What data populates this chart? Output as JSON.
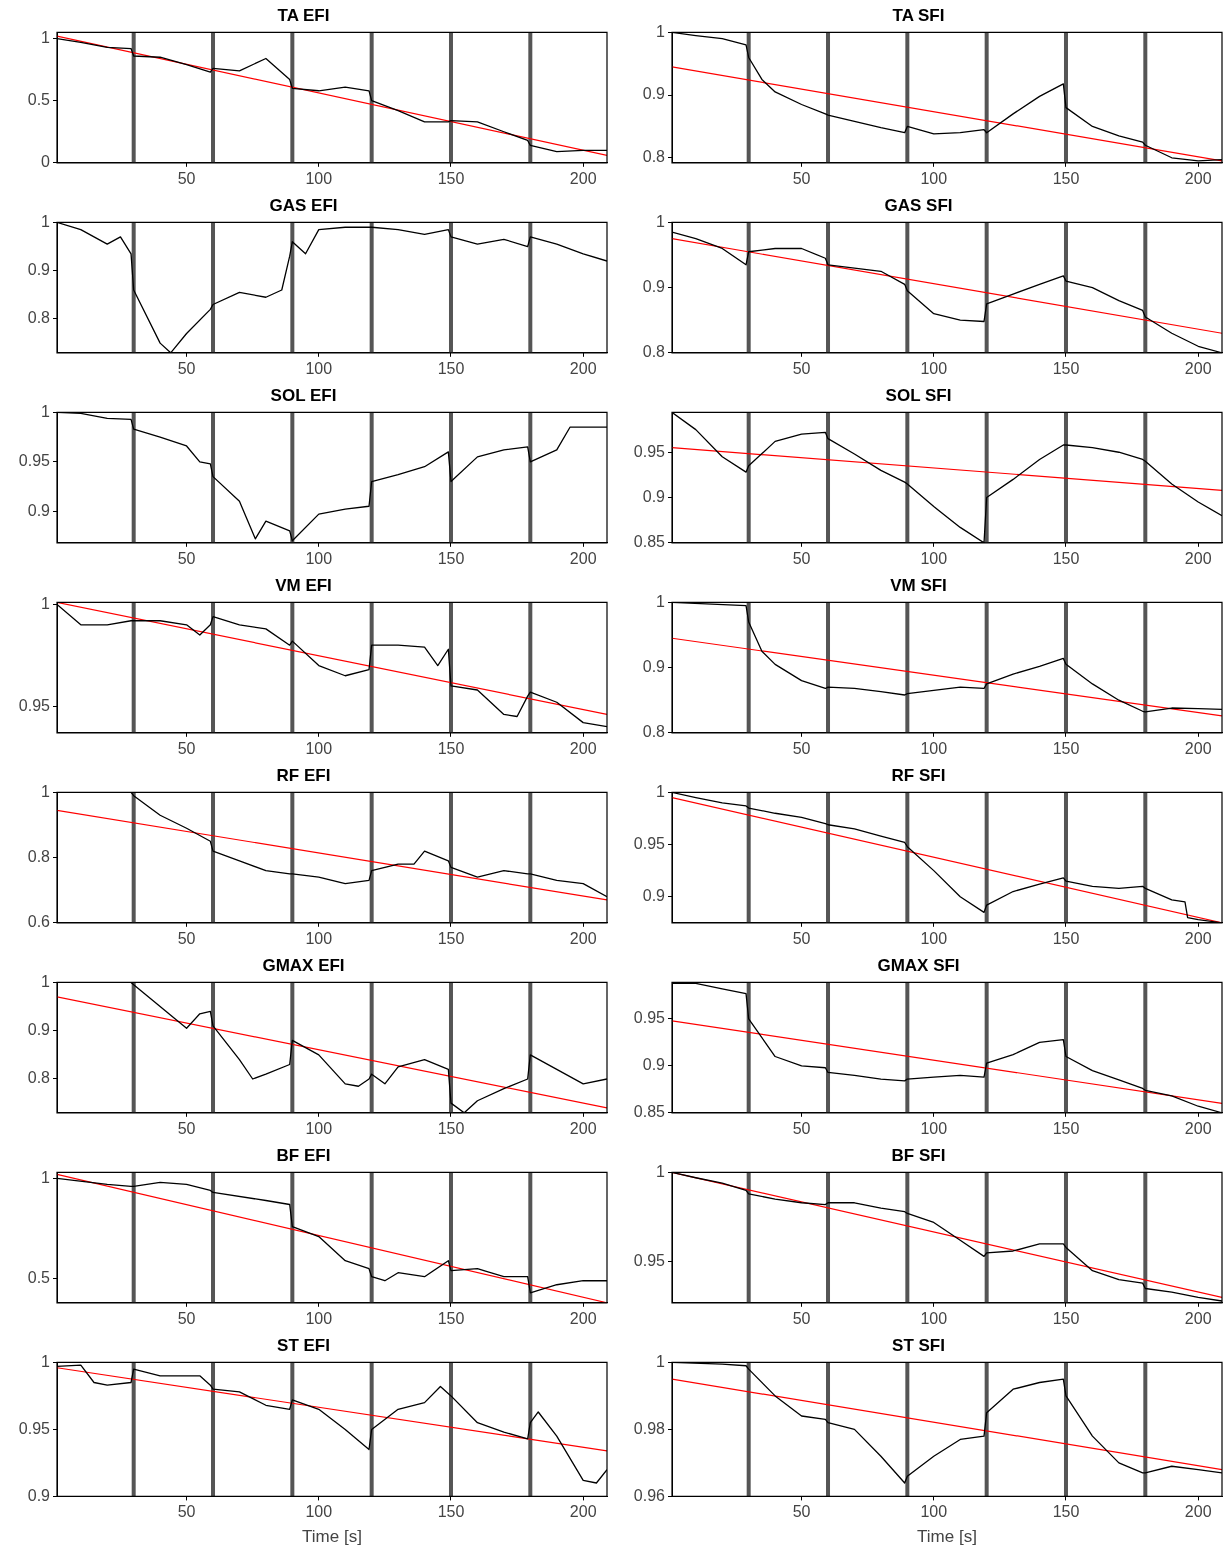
{
  "chart_data": [
    {
      "type": "line",
      "title": "TA EFI",
      "xlim": [
        1,
        209
      ],
      "xticks": [
        50,
        100,
        150,
        200
      ],
      "ylim": [
        0,
        1.05
      ],
      "yticks": [
        0,
        0.5,
        1
      ],
      "marker": "none",
      "ref_lines": [
        {
          "axis": "x",
          "value": 30,
          "color": "#555555"
        },
        {
          "axis": "x",
          "value": 60,
          "color": "#555555"
        },
        {
          "axis": "x",
          "value": 90,
          "color": "#555555"
        },
        {
          "axis": "x",
          "value": 120,
          "color": "#555555"
        },
        {
          "axis": "x",
          "value": 150,
          "color": "#555555"
        },
        {
          "axis": "x",
          "value": 180,
          "color": "#555555"
        }
      ],
      "series": [
        {
          "color": "#000000",
          "x": [
            1,
            10,
            20,
            29,
            30,
            40,
            50,
            59,
            60,
            70,
            80,
            89,
            90,
            100,
            110,
            119,
            120,
            130,
            140,
            149,
            150,
            160,
            170,
            179,
            180,
            190,
            200,
            209
          ],
          "values": [
            1.0,
            0.97,
            0.93,
            0.92,
            0.86,
            0.85,
            0.79,
            0.73,
            0.76,
            0.74,
            0.84,
            0.67,
            0.6,
            0.58,
            0.61,
            0.58,
            0.5,
            0.42,
            0.33,
            0.33,
            0.34,
            0.33,
            0.25,
            0.18,
            0.14,
            0.09,
            0.1,
            0.1
          ]
        },
        {
          "color": "#ff0000",
          "x": [
            1,
            209
          ],
          "values": [
            1.02,
            0.06
          ]
        }
      ]
    },
    {
      "type": "line",
      "title": "TA SFI",
      "xlim": [
        1,
        209
      ],
      "xticks": [
        50,
        100,
        150,
        200
      ],
      "ylim": [
        0.792,
        1.0
      ],
      "yticks": [
        0.8,
        0.9,
        1
      ],
      "marker": "none",
      "ref_lines": [
        {
          "axis": "x",
          "value": 30,
          "color": "#555555"
        },
        {
          "axis": "x",
          "value": 60,
          "color": "#555555"
        },
        {
          "axis": "x",
          "value": 90,
          "color": "#555555"
        },
        {
          "axis": "x",
          "value": 120,
          "color": "#555555"
        },
        {
          "axis": "x",
          "value": 150,
          "color": "#555555"
        },
        {
          "axis": "x",
          "value": 180,
          "color": "#555555"
        }
      ],
      "series": [
        {
          "color": "#000000",
          "x": [
            1,
            10,
            20,
            29,
            30,
            35,
            40,
            50,
            59,
            60,
            70,
            80,
            89,
            90,
            100,
            110,
            119,
            120,
            130,
            140,
            149,
            150,
            160,
            170,
            179,
            180,
            190,
            200,
            209
          ],
          "values": [
            1.0,
            0.995,
            0.99,
            0.98,
            0.96,
            0.925,
            0.905,
            0.885,
            0.87,
            0.868,
            0.858,
            0.848,
            0.84,
            0.85,
            0.838,
            0.84,
            0.845,
            0.84,
            0.87,
            0.898,
            0.918,
            0.88,
            0.85,
            0.835,
            0.825,
            0.82,
            0.8,
            0.795,
            0.797
          ]
        },
        {
          "color": "#ff0000",
          "x": [
            1,
            209
          ],
          "values": [
            0.945,
            0.795
          ]
        }
      ]
    },
    {
      "type": "line",
      "title": "GAS EFI",
      "xlim": [
        1,
        209
      ],
      "xticks": [
        50,
        100,
        150,
        200
      ],
      "ylim": [
        0.73,
        1.0
      ],
      "yticks": [
        0.8,
        0.9,
        1
      ],
      "marker": "none",
      "ref_lines": [
        {
          "axis": "x",
          "value": 30,
          "color": "#555555"
        },
        {
          "axis": "x",
          "value": 60,
          "color": "#555555"
        },
        {
          "axis": "x",
          "value": 90,
          "color": "#555555"
        },
        {
          "axis": "x",
          "value": 120,
          "color": "#555555"
        },
        {
          "axis": "x",
          "value": 150,
          "color": "#555555"
        },
        {
          "axis": "x",
          "value": 180,
          "color": "#555555"
        }
      ],
      "series": [
        {
          "color": "#000000",
          "x": [
            1,
            10,
            20,
            25,
            29,
            30,
            40,
            44,
            50,
            59,
            60,
            70,
            80,
            86,
            89,
            90,
            95,
            100,
            110,
            119,
            120,
            130,
            140,
            149,
            150,
            160,
            170,
            179,
            180,
            190,
            200,
            209
          ],
          "values": [
            1.0,
            0.985,
            0.955,
            0.97,
            0.935,
            0.86,
            0.75,
            0.73,
            0.77,
            0.82,
            0.83,
            0.855,
            0.845,
            0.86,
            0.93,
            0.96,
            0.935,
            0.985,
            0.99,
            0.99,
            0.99,
            0.985,
            0.975,
            0.985,
            0.97,
            0.955,
            0.965,
            0.95,
            0.97,
            0.955,
            0.935,
            0.92
          ]
        }
      ]
    },
    {
      "type": "line",
      "title": "GAS SFI",
      "xlim": [
        1,
        209
      ],
      "xticks": [
        50,
        100,
        150,
        200
      ],
      "ylim": [
        0.8,
        1.0
      ],
      "yticks": [
        0.8,
        0.9,
        1
      ],
      "marker": "none",
      "ref_lines": [
        {
          "axis": "x",
          "value": 30,
          "color": "#555555"
        },
        {
          "axis": "x",
          "value": 60,
          "color": "#555555"
        },
        {
          "axis": "x",
          "value": 90,
          "color": "#555555"
        },
        {
          "axis": "x",
          "value": 120,
          "color": "#555555"
        },
        {
          "axis": "x",
          "value": 150,
          "color": "#555555"
        },
        {
          "axis": "x",
          "value": 180,
          "color": "#555555"
        }
      ],
      "series": [
        {
          "color": "#000000",
          "x": [
            1,
            10,
            20,
            29,
            30,
            40,
            50,
            59,
            60,
            70,
            80,
            89,
            90,
            100,
            110,
            119,
            120,
            130,
            140,
            149,
            150,
            160,
            170,
            179,
            180,
            190,
            200,
            209
          ],
          "values": [
            0.985,
            0.975,
            0.96,
            0.935,
            0.955,
            0.96,
            0.96,
            0.945,
            0.935,
            0.93,
            0.925,
            0.905,
            0.895,
            0.86,
            0.85,
            0.848,
            0.875,
            0.89,
            0.905,
            0.918,
            0.91,
            0.9,
            0.88,
            0.865,
            0.855,
            0.83,
            0.81,
            0.8
          ]
        },
        {
          "color": "#ff0000",
          "x": [
            1,
            209
          ],
          "values": [
            0.975,
            0.83
          ]
        }
      ]
    },
    {
      "type": "line",
      "title": "SOL EFI",
      "xlim": [
        1,
        209
      ],
      "xticks": [
        50,
        100,
        150,
        200
      ],
      "ylim": [
        0.868,
        1.0
      ],
      "yticks": [
        0.9,
        0.95,
        1
      ],
      "marker": "none",
      "ref_lines": [
        {
          "axis": "x",
          "value": 30,
          "color": "#555555"
        },
        {
          "axis": "x",
          "value": 60,
          "color": "#555555"
        },
        {
          "axis": "x",
          "value": 90,
          "color": "#555555"
        },
        {
          "axis": "x",
          "value": 120,
          "color": "#555555"
        },
        {
          "axis": "x",
          "value": 150,
          "color": "#555555"
        },
        {
          "axis": "x",
          "value": 180,
          "color": "#555555"
        }
      ],
      "series": [
        {
          "color": "#000000",
          "x": [
            1,
            10,
            20,
            29,
            30,
            40,
            50,
            55,
            59,
            60,
            70,
            76,
            80,
            89,
            90,
            100,
            110,
            119,
            120,
            130,
            140,
            149,
            150,
            160,
            170,
            179,
            180,
            190,
            195,
            209
          ],
          "values": [
            1.0,
            0.999,
            0.994,
            0.993,
            0.983,
            0.975,
            0.966,
            0.95,
            0.948,
            0.935,
            0.91,
            0.872,
            0.89,
            0.88,
            0.87,
            0.897,
            0.902,
            0.905,
            0.93,
            0.937,
            0.945,
            0.96,
            0.93,
            0.955,
            0.962,
            0.965,
            0.95,
            0.962,
            0.985,
            0.985
          ]
        }
      ]
    },
    {
      "type": "line",
      "title": "SOL SFI",
      "xlim": [
        1,
        209
      ],
      "xticks": [
        50,
        100,
        150,
        200
      ],
      "ylim": [
        0.85,
        0.994
      ],
      "yticks": [
        0.85,
        0.9,
        0.95
      ],
      "marker": "none",
      "ref_lines": [
        {
          "axis": "x",
          "value": 30,
          "color": "#555555"
        },
        {
          "axis": "x",
          "value": 60,
          "color": "#555555"
        },
        {
          "axis": "x",
          "value": 90,
          "color": "#555555"
        },
        {
          "axis": "x",
          "value": 120,
          "color": "#555555"
        },
        {
          "axis": "x",
          "value": 150,
          "color": "#555555"
        },
        {
          "axis": "x",
          "value": 180,
          "color": "#555555"
        }
      ],
      "series": [
        {
          "color": "#000000",
          "x": [
            1,
            10,
            20,
            29,
            30,
            40,
            50,
            59,
            60,
            70,
            80,
            89,
            90,
            100,
            110,
            119,
            120,
            130,
            140,
            149,
            150,
            160,
            170,
            179,
            180,
            190,
            200,
            209
          ],
          "values": [
            0.994,
            0.975,
            0.945,
            0.928,
            0.935,
            0.962,
            0.97,
            0.972,
            0.965,
            0.948,
            0.93,
            0.917,
            0.915,
            0.89,
            0.867,
            0.85,
            0.9,
            0.92,
            0.942,
            0.958,
            0.958,
            0.955,
            0.95,
            0.942,
            0.94,
            0.915,
            0.895,
            0.88
          ]
        },
        {
          "color": "#ff0000",
          "x": [
            1,
            209
          ],
          "values": [
            0.955,
            0.908
          ]
        }
      ]
    },
    {
      "type": "line",
      "title": "VM EFI",
      "xlim": [
        1,
        209
      ],
      "xticks": [
        50,
        100,
        150,
        200
      ],
      "ylim": [
        0.937,
        1.001
      ],
      "yticks": [
        0.95,
        1
      ],
      "marker": "none",
      "ref_lines": [
        {
          "axis": "x",
          "value": 30,
          "color": "#555555"
        },
        {
          "axis": "x",
          "value": 60,
          "color": "#555555"
        },
        {
          "axis": "x",
          "value": 90,
          "color": "#555555"
        },
        {
          "axis": "x",
          "value": 120,
          "color": "#555555"
        },
        {
          "axis": "x",
          "value": 150,
          "color": "#555555"
        },
        {
          "axis": "x",
          "value": 180,
          "color": "#555555"
        }
      ],
      "series": [
        {
          "color": "#000000",
          "x": [
            1,
            10,
            20,
            29,
            30,
            40,
            50,
            55,
            59,
            60,
            70,
            80,
            89,
            90,
            100,
            110,
            119,
            120,
            130,
            140,
            145,
            149,
            150,
            160,
            170,
            175,
            179,
            180,
            190,
            200,
            209
          ],
          "values": [
            1.0,
            0.99,
            0.99,
            0.992,
            0.992,
            0.992,
            0.99,
            0.985,
            0.99,
            0.994,
            0.99,
            0.988,
            0.98,
            0.982,
            0.97,
            0.965,
            0.968,
            0.98,
            0.98,
            0.979,
            0.97,
            0.978,
            0.96,
            0.958,
            0.946,
            0.945,
            0.955,
            0.957,
            0.952,
            0.942,
            0.94
          ]
        },
        {
          "color": "#ff0000",
          "x": [
            1,
            209
          ],
          "values": [
            1.001,
            0.946
          ]
        }
      ]
    },
    {
      "type": "line",
      "title": "VM SFI",
      "xlim": [
        1,
        209
      ],
      "xticks": [
        50,
        100,
        150,
        200
      ],
      "ylim": [
        0.8,
        1.0
      ],
      "yticks": [
        0.8,
        0.9,
        1
      ],
      "marker": "none",
      "ref_lines": [
        {
          "axis": "x",
          "value": 30,
          "color": "#555555"
        },
        {
          "axis": "x",
          "value": 60,
          "color": "#555555"
        },
        {
          "axis": "x",
          "value": 90,
          "color": "#555555"
        },
        {
          "axis": "x",
          "value": 120,
          "color": "#555555"
        },
        {
          "axis": "x",
          "value": 150,
          "color": "#555555"
        },
        {
          "axis": "x",
          "value": 180,
          "color": "#555555"
        }
      ],
      "series": [
        {
          "color": "#000000",
          "x": [
            1,
            29,
            30,
            35,
            40,
            50,
            59,
            60,
            70,
            80,
            89,
            90,
            100,
            110,
            119,
            120,
            130,
            140,
            149,
            150,
            160,
            170,
            179,
            180,
            190,
            200,
            209
          ],
          "values": [
            1.0,
            0.995,
            0.97,
            0.925,
            0.905,
            0.88,
            0.868,
            0.87,
            0.868,
            0.863,
            0.858,
            0.86,
            0.865,
            0.87,
            0.868,
            0.875,
            0.89,
            0.902,
            0.914,
            0.905,
            0.875,
            0.85,
            0.833,
            0.832,
            0.838,
            0.837,
            0.836
          ]
        },
        {
          "color": "#ff0000",
          "x": [
            1,
            209
          ],
          "values": [
            0.945,
            0.826
          ]
        }
      ]
    },
    {
      "type": "line",
      "title": "RF EFI",
      "xlim": [
        1,
        209
      ],
      "xticks": [
        50,
        100,
        150,
        200
      ],
      "ylim": [
        0.6,
        1.0
      ],
      "yticks": [
        0.6,
        0.8,
        1
      ],
      "marker": "none",
      "ref_lines": [
        {
          "axis": "x",
          "value": 30,
          "color": "#555555"
        },
        {
          "axis": "x",
          "value": 60,
          "color": "#555555"
        },
        {
          "axis": "x",
          "value": 90,
          "color": "#555555"
        },
        {
          "axis": "x",
          "value": 120,
          "color": "#555555"
        },
        {
          "axis": "x",
          "value": 150,
          "color": "#555555"
        },
        {
          "axis": "x",
          "value": 180,
          "color": "#555555"
        }
      ],
      "series": [
        {
          "color": "#000000",
          "x": [
            1,
            29,
            30,
            40,
            50,
            59,
            60,
            70,
            80,
            89,
            90,
            100,
            110,
            119,
            120,
            130,
            136,
            140,
            149,
            150,
            160,
            170,
            179,
            180,
            190,
            200,
            209
          ],
          "values": [
            1.0,
            1.0,
            0.99,
            0.93,
            0.89,
            0.85,
            0.82,
            0.79,
            0.76,
            0.75,
            0.75,
            0.74,
            0.72,
            0.73,
            0.76,
            0.78,
            0.78,
            0.82,
            0.79,
            0.77,
            0.74,
            0.76,
            0.75,
            0.75,
            0.73,
            0.72,
            0.68
          ]
        },
        {
          "color": "#ff0000",
          "x": [
            1,
            209
          ],
          "values": [
            0.945,
            0.67
          ]
        }
      ]
    },
    {
      "type": "line",
      "title": "RF SFI",
      "xlim": [
        1,
        209
      ],
      "xticks": [
        50,
        100,
        150,
        200
      ],
      "ylim": [
        0.875,
        1.0
      ],
      "yticks": [
        0.9,
        0.95,
        1
      ],
      "marker": "none",
      "ref_lines": [
        {
          "axis": "x",
          "value": 30,
          "color": "#555555"
        },
        {
          "axis": "x",
          "value": 60,
          "color": "#555555"
        },
        {
          "axis": "x",
          "value": 90,
          "color": "#555555"
        },
        {
          "axis": "x",
          "value": 120,
          "color": "#555555"
        },
        {
          "axis": "x",
          "value": 150,
          "color": "#555555"
        },
        {
          "axis": "x",
          "value": 180,
          "color": "#555555"
        }
      ],
      "series": [
        {
          "color": "#000000",
          "x": [
            1,
            10,
            20,
            29,
            30,
            40,
            50,
            59,
            60,
            70,
            80,
            89,
            90,
            100,
            110,
            119,
            120,
            130,
            140,
            149,
            150,
            160,
            170,
            179,
            180,
            190,
            195,
            196,
            200,
            209
          ],
          "values": [
            1.0,
            0.995,
            0.99,
            0.987,
            0.985,
            0.98,
            0.976,
            0.97,
            0.969,
            0.965,
            0.958,
            0.952,
            0.948,
            0.925,
            0.9,
            0.885,
            0.892,
            0.905,
            0.912,
            0.918,
            0.915,
            0.91,
            0.908,
            0.91,
            0.908,
            0.897,
            0.895,
            0.88,
            0.878,
            0.875
          ]
        },
        {
          "color": "#ff0000",
          "x": [
            1,
            209
          ],
          "values": [
            0.995,
            0.875
          ]
        }
      ]
    },
    {
      "type": "line",
      "title": "GMAX EFI",
      "xlim": [
        1,
        209
      ],
      "xticks": [
        50,
        100,
        150,
        200
      ],
      "ylim": [
        0.73,
        1.0
      ],
      "yticks": [
        0.8,
        0.9,
        1
      ],
      "marker": "none",
      "ref_lines": [
        {
          "axis": "x",
          "value": 30,
          "color": "#555555"
        },
        {
          "axis": "x",
          "value": 60,
          "color": "#555555"
        },
        {
          "axis": "x",
          "value": 90,
          "color": "#555555"
        },
        {
          "axis": "x",
          "value": 120,
          "color": "#555555"
        },
        {
          "axis": "x",
          "value": 150,
          "color": "#555555"
        },
        {
          "axis": "x",
          "value": 180,
          "color": "#555555"
        }
      ],
      "series": [
        {
          "color": "#000000",
          "x": [
            1,
            29,
            30,
            40,
            50,
            55,
            59,
            60,
            70,
            75,
            80,
            89,
            90,
            100,
            110,
            115,
            119,
            120,
            125,
            130,
            140,
            149,
            150,
            155,
            160,
            170,
            179,
            180,
            190,
            200,
            209
          ],
          "values": [
            1.0,
            1.0,
            0.995,
            0.95,
            0.905,
            0.935,
            0.94,
            0.91,
            0.84,
            0.8,
            0.81,
            0.83,
            0.88,
            0.85,
            0.79,
            0.785,
            0.8,
            0.81,
            0.79,
            0.825,
            0.84,
            0.82,
            0.75,
            0.73,
            0.755,
            0.78,
            0.8,
            0.85,
            0.82,
            0.79,
            0.8
          ]
        },
        {
          "color": "#ff0000",
          "x": [
            1,
            209
          ],
          "values": [
            0.97,
            0.74
          ]
        }
      ]
    },
    {
      "type": "line",
      "title": "GMAX SFI",
      "xlim": [
        1,
        209
      ],
      "xticks": [
        50,
        100,
        150,
        200
      ],
      "ylim": [
        0.85,
        0.989
      ],
      "yticks": [
        0.85,
        0.9,
        0.95
      ],
      "marker": "none",
      "ref_lines": [
        {
          "axis": "x",
          "value": 30,
          "color": "#555555"
        },
        {
          "axis": "x",
          "value": 60,
          "color": "#555555"
        },
        {
          "axis": "x",
          "value": 90,
          "color": "#555555"
        },
        {
          "axis": "x",
          "value": 120,
          "color": "#555555"
        },
        {
          "axis": "x",
          "value": 150,
          "color": "#555555"
        },
        {
          "axis": "x",
          "value": 180,
          "color": "#555555"
        }
      ],
      "series": [
        {
          "color": "#000000",
          "x": [
            1,
            10,
            20,
            29,
            30,
            40,
            50,
            59,
            60,
            70,
            80,
            89,
            90,
            100,
            110,
            119,
            120,
            130,
            140,
            149,
            150,
            160,
            170,
            179,
            180,
            190,
            200,
            209
          ],
          "values": [
            0.988,
            0.988,
            0.982,
            0.977,
            0.95,
            0.91,
            0.9,
            0.898,
            0.893,
            0.89,
            0.886,
            0.884,
            0.886,
            0.888,
            0.89,
            0.888,
            0.903,
            0.912,
            0.925,
            0.928,
            0.91,
            0.895,
            0.885,
            0.876,
            0.874,
            0.868,
            0.857,
            0.85
          ]
        },
        {
          "color": "#ff0000",
          "x": [
            1,
            209
          ],
          "values": [
            0.948,
            0.86
          ]
        }
      ]
    },
    {
      "type": "line",
      "title": "BF EFI",
      "xlim": [
        1,
        209
      ],
      "xticks": [
        50,
        100,
        150,
        200
      ],
      "ylim": [
        0.38,
        1.03
      ],
      "yticks": [
        0.5,
        1
      ],
      "marker": "none",
      "ref_lines": [
        {
          "axis": "x",
          "value": 30,
          "color": "#555555"
        },
        {
          "axis": "x",
          "value": 60,
          "color": "#555555"
        },
        {
          "axis": "x",
          "value": 90,
          "color": "#555555"
        },
        {
          "axis": "x",
          "value": 120,
          "color": "#555555"
        },
        {
          "axis": "x",
          "value": 150,
          "color": "#555555"
        },
        {
          "axis": "x",
          "value": 180,
          "color": "#555555"
        }
      ],
      "series": [
        {
          "color": "#000000",
          "x": [
            1,
            20,
            29,
            30,
            40,
            50,
            59,
            60,
            80,
            89,
            90,
            100,
            110,
            119,
            120,
            125,
            130,
            140,
            149,
            150,
            160,
            170,
            179,
            180,
            190,
            200,
            209
          ],
          "values": [
            1.0,
            0.97,
            0.96,
            0.96,
            0.98,
            0.97,
            0.94,
            0.93,
            0.89,
            0.87,
            0.76,
            0.71,
            0.59,
            0.55,
            0.51,
            0.49,
            0.53,
            0.51,
            0.59,
            0.54,
            0.55,
            0.51,
            0.51,
            0.43,
            0.47,
            0.49,
            0.49
          ]
        },
        {
          "color": "#ff0000",
          "x": [
            1,
            209
          ],
          "values": [
            1.02,
            0.38
          ]
        }
      ]
    },
    {
      "type": "line",
      "title": "BF SFI",
      "xlim": [
        1,
        209
      ],
      "xticks": [
        50,
        100,
        150,
        200
      ],
      "ylim": [
        0.927,
        1.0
      ],
      "yticks": [
        0.95,
        1
      ],
      "marker": "none",
      "ref_lines": [
        {
          "axis": "x",
          "value": 30,
          "color": "#555555"
        },
        {
          "axis": "x",
          "value": 60,
          "color": "#555555"
        },
        {
          "axis": "x",
          "value": 90,
          "color": "#555555"
        },
        {
          "axis": "x",
          "value": 120,
          "color": "#555555"
        },
        {
          "axis": "x",
          "value": 150,
          "color": "#555555"
        },
        {
          "axis": "x",
          "value": 180,
          "color": "#555555"
        }
      ],
      "series": [
        {
          "color": "#000000",
          "x": [
            1,
            10,
            20,
            29,
            30,
            40,
            50,
            59,
            60,
            70,
            80,
            89,
            90,
            100,
            110,
            119,
            120,
            130,
            140,
            149,
            150,
            160,
            170,
            179,
            180,
            190,
            200,
            209
          ],
          "values": [
            1.0,
            0.997,
            0.994,
            0.99,
            0.988,
            0.985,
            0.983,
            0.982,
            0.983,
            0.983,
            0.98,
            0.978,
            0.977,
            0.972,
            0.962,
            0.953,
            0.955,
            0.956,
            0.96,
            0.96,
            0.958,
            0.945,
            0.94,
            0.938,
            0.935,
            0.933,
            0.93,
            0.928
          ]
        },
        {
          "color": "#ff0000",
          "x": [
            1,
            209
          ],
          "values": [
            1.0,
            0.93
          ]
        }
      ]
    },
    {
      "type": "line",
      "title": "ST EFI",
      "xlabel": "Time [s]",
      "xlim": [
        1,
        209
      ],
      "xticks": [
        50,
        100,
        150,
        200
      ],
      "ylim": [
        0.9,
        1.0
      ],
      "yticks": [
        0.9,
        0.95,
        1
      ],
      "marker": "none",
      "ref_lines": [
        {
          "axis": "x",
          "value": 30,
          "color": "#555555"
        },
        {
          "axis": "x",
          "value": 60,
          "color": "#555555"
        },
        {
          "axis": "x",
          "value": 90,
          "color": "#555555"
        },
        {
          "axis": "x",
          "value": 120,
          "color": "#555555"
        },
        {
          "axis": "x",
          "value": 150,
          "color": "#555555"
        },
        {
          "axis": "x",
          "value": 180,
          "color": "#555555"
        }
      ],
      "series": [
        {
          "color": "#000000",
          "x": [
            1,
            10,
            15,
            20,
            29,
            30,
            40,
            50,
            55,
            59,
            60,
            70,
            80,
            89,
            90,
            100,
            110,
            119,
            120,
            130,
            140,
            146,
            150,
            160,
            170,
            179,
            180,
            183,
            190,
            200,
            205,
            209
          ],
          "values": [
            0.997,
            0.998,
            0.985,
            0.983,
            0.985,
            0.995,
            0.99,
            0.99,
            0.99,
            0.983,
            0.98,
            0.978,
            0.968,
            0.965,
            0.972,
            0.965,
            0.95,
            0.935,
            0.95,
            0.965,
            0.97,
            0.982,
            0.975,
            0.955,
            0.948,
            0.943,
            0.955,
            0.963,
            0.945,
            0.912,
            0.91,
            0.92
          ]
        },
        {
          "color": "#ff0000",
          "x": [
            1,
            209
          ],
          "values": [
            0.996,
            0.934
          ]
        }
      ]
    },
    {
      "type": "line",
      "title": "ST SFI",
      "xlabel": "Time [s]",
      "xlim": [
        1,
        209
      ],
      "xticks": [
        50,
        100,
        150,
        200
      ],
      "ylim": [
        0.96,
        1.0
      ],
      "yticks": [
        0.96,
        0.98,
        1
      ],
      "marker": "none",
      "ref_lines": [
        {
          "axis": "x",
          "value": 30,
          "color": "#555555"
        },
        {
          "axis": "x",
          "value": 60,
          "color": "#555555"
        },
        {
          "axis": "x",
          "value": 90,
          "color": "#555555"
        },
        {
          "axis": "x",
          "value": 120,
          "color": "#555555"
        },
        {
          "axis": "x",
          "value": 150,
          "color": "#555555"
        },
        {
          "axis": "x",
          "value": 180,
          "color": "#555555"
        }
      ],
      "series": [
        {
          "color": "#000000",
          "x": [
            1,
            20,
            29,
            30,
            40,
            50,
            59,
            60,
            70,
            80,
            89,
            90,
            100,
            110,
            119,
            120,
            130,
            140,
            149,
            150,
            160,
            170,
            179,
            180,
            190,
            200,
            209
          ],
          "values": [
            1.0,
            0.9995,
            0.999,
            0.998,
            0.99,
            0.984,
            0.983,
            0.982,
            0.98,
            0.972,
            0.964,
            0.966,
            0.972,
            0.977,
            0.978,
            0.985,
            0.992,
            0.994,
            0.995,
            0.99,
            0.978,
            0.97,
            0.967,
            0.967,
            0.969,
            0.968,
            0.967
          ]
        },
        {
          "color": "#ff0000",
          "x": [
            1,
            209
          ],
          "values": [
            0.995,
            0.968
          ]
        }
      ]
    }
  ]
}
